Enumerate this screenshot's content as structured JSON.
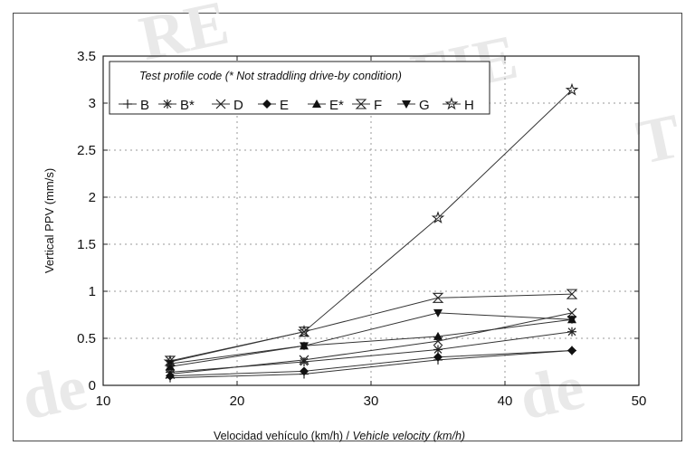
{
  "chart_data": {
    "type": "line",
    "legend_title": "Test profile code (* Not straddling drive-by condition)",
    "xlabel_es": "Velocidad vehículo (km/h) / ",
    "xlabel_en": "Vehicle velocity (km/h)",
    "ylabel": "Vertical PPV (mm/s)",
    "xlim": [
      10,
      50
    ],
    "ylim": [
      0,
      3.5
    ],
    "x_ticks": [
      "10",
      "20",
      "30",
      "40",
      "50"
    ],
    "y_ticks": [
      "0",
      "0.5",
      "1",
      "1.5",
      "2",
      "2.5",
      "3",
      "3.5"
    ],
    "grid": true,
    "legend_position": "top-left",
    "x": [
      15,
      25,
      35,
      45
    ],
    "series": [
      {
        "name": "B",
        "marker": "plus",
        "values": [
          0.08,
          0.12,
          0.27,
          0.37
        ]
      },
      {
        "name": "B*",
        "marker": "asterisk",
        "values": [
          0.14,
          0.25,
          0.38,
          0.57
        ]
      },
      {
        "name": "D",
        "marker": "x",
        "values": [
          0.12,
          0.27,
          0.47,
          0.77
        ]
      },
      {
        "name": "E",
        "marker": "diamond",
        "values": [
          0.1,
          0.15,
          0.3,
          0.37
        ]
      },
      {
        "name": "E*",
        "marker": "triangle-up",
        "values": [
          0.2,
          0.42,
          0.52,
          0.7
        ]
      },
      {
        "name": "F",
        "marker": "hourglass",
        "values": [
          0.26,
          0.57,
          0.93,
          0.97
        ]
      },
      {
        "name": "G",
        "marker": "triangle-down",
        "values": [
          0.23,
          0.42,
          0.77,
          0.7
        ]
      },
      {
        "name": "H",
        "marker": "star",
        "values": [
          0.25,
          0.57,
          1.78,
          3.14
        ]
      }
    ]
  },
  "watermark_text": [
    "RE",
    "FIE",
    "de",
    "de",
    "T"
  ]
}
